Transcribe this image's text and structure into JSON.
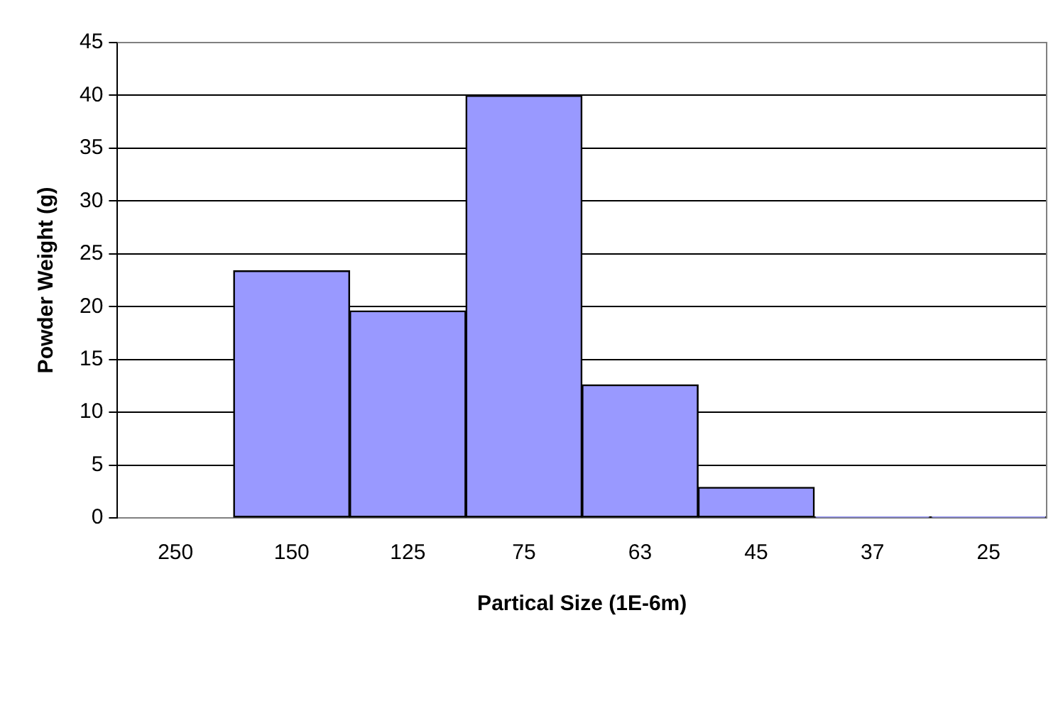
{
  "chart_data": {
    "type": "bar",
    "xlabel": "Partical Size (1E-6m)",
    "ylabel": "Powder Weight (g)",
    "categories": [
      "250",
      "150",
      "125",
      "75",
      "63",
      "45",
      "37",
      "25"
    ],
    "values": [
      0,
      23.4,
      19.6,
      40,
      12.6,
      2.9,
      0.1,
      0.1
    ],
    "color": "#9999ff",
    "ylim": [
      0,
      45
    ],
    "yticks": [
      0,
      5,
      10,
      15,
      20,
      25,
      30,
      35,
      40,
      45
    ],
    "grid": "y",
    "legend": false
  }
}
